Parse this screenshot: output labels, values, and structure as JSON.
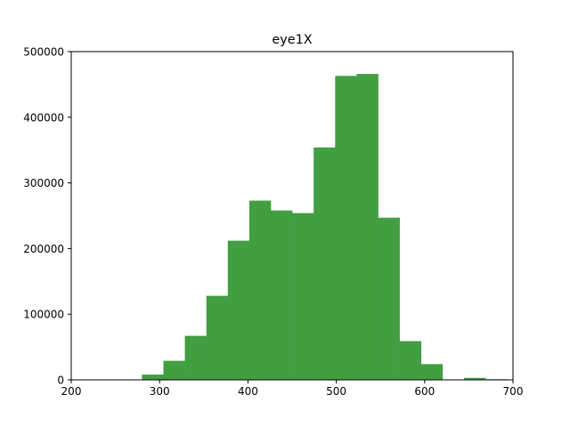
{
  "colors": {
    "bar": "#419e41",
    "axis": "#000000",
    "background": "#ffffff"
  },
  "chart_data": {
    "type": "bar",
    "title": "eye1X",
    "xlabel": "",
    "ylabel": "",
    "xlim": [
      200,
      700
    ],
    "ylim": [
      0,
      500000
    ],
    "grid": false,
    "x_ticks": [
      200,
      300,
      400,
      500,
      600,
      700
    ],
    "y_ticks": [
      0,
      100000,
      200000,
      300000,
      400000,
      500000
    ],
    "x_tick_labels": [
      "200",
      "300",
      "400",
      "500",
      "600",
      "700"
    ],
    "y_tick_labels": [
      "0",
      "100000",
      "200000",
      "300000",
      "400000",
      "500000"
    ],
    "bins": [
      {
        "x0": 280.0,
        "x1": 304.3,
        "value": 8000
      },
      {
        "x0": 304.3,
        "x1": 328.6,
        "value": 29000
      },
      {
        "x0": 328.6,
        "x1": 352.9,
        "value": 67000
      },
      {
        "x0": 352.9,
        "x1": 377.2,
        "value": 128000
      },
      {
        "x0": 377.2,
        "x1": 401.5,
        "value": 212000
      },
      {
        "x0": 401.5,
        "x1": 425.8,
        "value": 273000
      },
      {
        "x0": 425.8,
        "x1": 450.1,
        "value": 258000
      },
      {
        "x0": 450.1,
        "x1": 474.4,
        "value": 254000
      },
      {
        "x0": 474.4,
        "x1": 498.7,
        "value": 354000
      },
      {
        "x0": 498.7,
        "x1": 523.0,
        "value": 463000
      },
      {
        "x0": 523.0,
        "x1": 547.3,
        "value": 466000
      },
      {
        "x0": 547.3,
        "x1": 571.6,
        "value": 247000
      },
      {
        "x0": 571.6,
        "x1": 595.9,
        "value": 59000
      },
      {
        "x0": 595.9,
        "x1": 620.2,
        "value": 24000
      },
      {
        "x0": 620.2,
        "x1": 644.5,
        "value": 0
      },
      {
        "x0": 644.5,
        "x1": 668.8,
        "value": 3000
      },
      {
        "x0": 668.8,
        "x1": 693.1,
        "value": 1000
      }
    ]
  }
}
